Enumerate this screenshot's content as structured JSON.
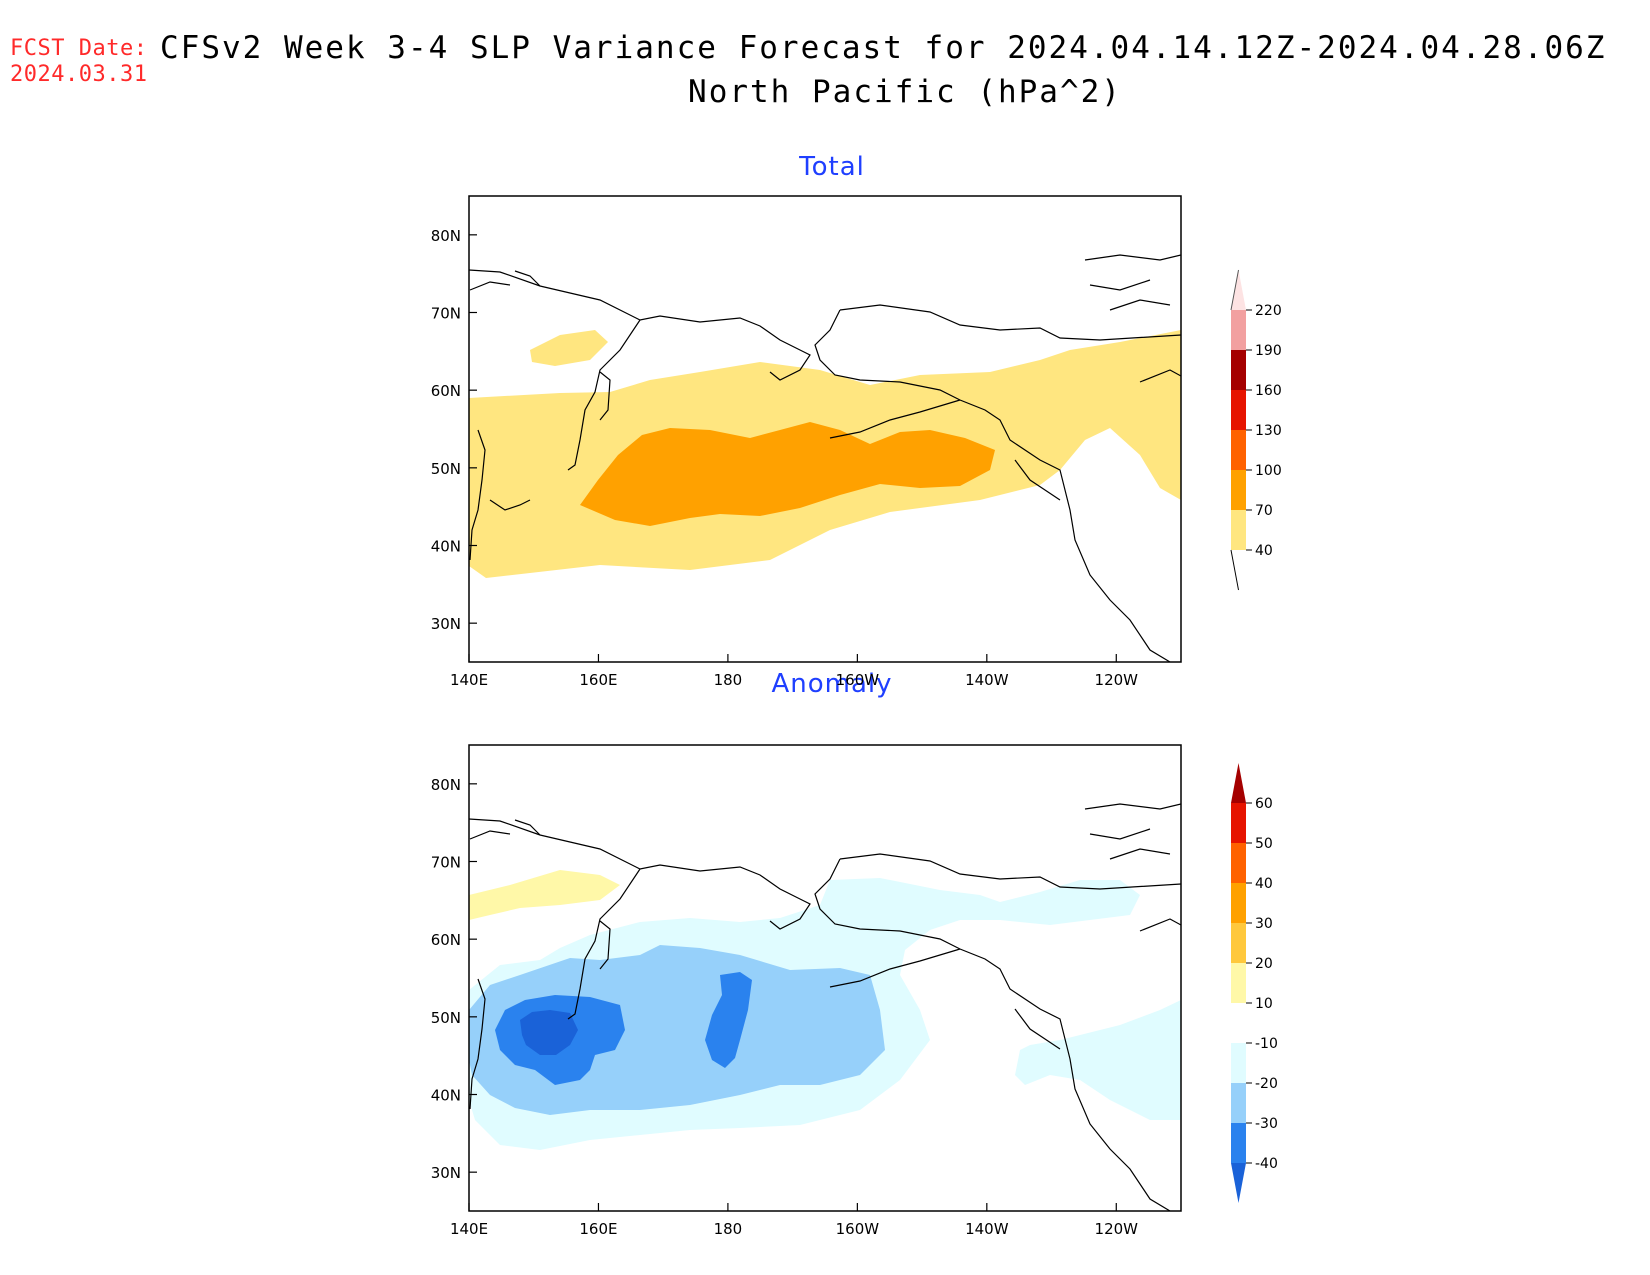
{
  "header": {
    "fcst_label": "FCST Date:",
    "fcst_date": "2024.03.31",
    "title": "CFSv2 Week 3-4 SLP Variance Forecast for 2024.04.14.12Z-2024.04.28.06Z",
    "subtitle": "North Pacific (hPa^2)"
  },
  "map": {
    "lat_ticks": [
      "80N",
      "70N",
      "60N",
      "50N",
      "40N",
      "30N"
    ],
    "lon_ticks": [
      "140E",
      "160E",
      "180",
      "160W",
      "140W",
      "120W"
    ],
    "extent": {
      "lon_west": 140,
      "lon_east": 250,
      "lat_south": 25,
      "lat_north": 85
    }
  },
  "panels": [
    {
      "title": "Total",
      "colorbar": {
        "levels": [
          "40",
          "70",
          "100",
          "130",
          "160",
          "190",
          "220"
        ],
        "colors": [
          "#ffe680",
          "#ffa100",
          "#ff6200",
          "#e61400",
          "#a50000",
          "#f2a0a0",
          "#fde3e3"
        ]
      }
    },
    {
      "title": "Anomaly",
      "colorbar": {
        "levels": [
          "-40",
          "-30",
          "-20",
          "-10",
          "10",
          "20",
          "30",
          "40",
          "50",
          "60"
        ],
        "colors": [
          "#1a62d8",
          "#2a82ee",
          "#96d0fa",
          "#e0fcff",
          "#ffffff",
          "#fff8a8",
          "#ffc83c",
          "#ffa100",
          "#ff6200",
          "#e61400",
          "#a50000"
        ]
      }
    }
  ]
}
